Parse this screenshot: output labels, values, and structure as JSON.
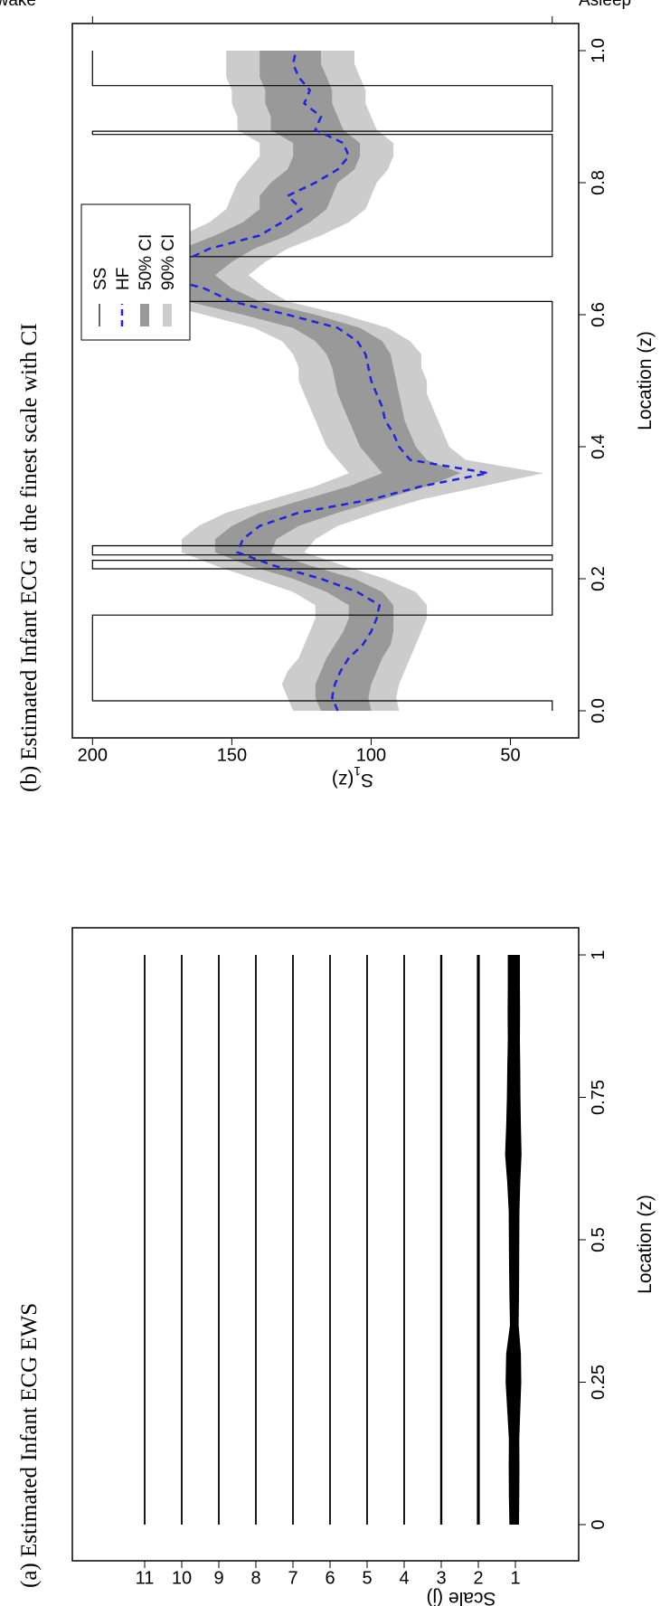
{
  "chart_data": [
    {
      "type": "heatmap",
      "caption": "(a) Estimated Infant ECG EWS",
      "xlabel": "Location (z)",
      "ylabel": "Scale (j)",
      "xticks": [
        "0",
        "0.25",
        "0.5",
        "0.75",
        "1"
      ],
      "xtick_values": [
        0,
        0.25,
        0.5,
        0.75,
        1
      ],
      "yticks": [
        "1",
        "2",
        "3",
        "4",
        "5",
        "6",
        "7",
        "8",
        "9",
        "10",
        "11"
      ],
      "scales": [
        1,
        2,
        3,
        4,
        5,
        6,
        7,
        8,
        9,
        10,
        11
      ],
      "xlim": [
        0,
        1
      ],
      "finest_scale_power_profile": {
        "z": [
          0,
          0.05,
          0.1,
          0.15,
          0.2,
          0.25,
          0.3,
          0.35,
          0.4,
          0.45,
          0.5,
          0.55,
          0.6,
          0.65,
          0.7,
          0.75,
          0.8,
          0.85,
          0.9,
          0.95,
          1.0
        ],
        "relative_power": [
          0.55,
          0.6,
          0.62,
          0.6,
          0.75,
          0.9,
          0.85,
          0.5,
          0.55,
          0.58,
          0.6,
          0.62,
          0.75,
          0.95,
          0.85,
          0.78,
          0.75,
          0.7,
          0.72,
          0.7,
          0.7
        ]
      }
    },
    {
      "type": "line",
      "caption": "(b) Estimated Infant ECG at the finest scale with CI",
      "xlabel": "Location (z)",
      "ylabel": "S",
      "ylabel_sub": "1",
      "ylabel_tail": "(z)",
      "xlim": [
        0,
        1
      ],
      "ylim": [
        32,
        204
      ],
      "xticks": [
        "0.0",
        "0.2",
        "0.4",
        "0.6",
        "0.8",
        "1.0"
      ],
      "xtick_values": [
        0,
        0.2,
        0.4,
        0.6,
        0.8,
        1.0
      ],
      "yticks": [
        "50",
        "100",
        "150",
        "200"
      ],
      "ytick_values": [
        50,
        100,
        150,
        200
      ],
      "state_labels": {
        "high": "Awake",
        "low": "Asleep"
      },
      "state_values": {
        "high": 200,
        "low": 35
      },
      "legend": {
        "position": "top-left",
        "labels": [
          "SS",
          "HF",
          "50% CI",
          "90% CI"
        ]
      },
      "colors": {
        "hf": "#1f24e0",
        "ci50": "#999999",
        "ci90": "#cccccc",
        "ss": "#000000"
      },
      "ss": {
        "z": [
          0,
          0.015,
          0.015,
          0.145,
          0.145,
          0.215,
          0.215,
          0.228,
          0.228,
          0.236,
          0.236,
          0.25,
          0.25,
          0.62,
          0.62,
          0.688,
          0.688,
          0.873,
          0.873,
          0.878,
          0.878,
          0.947,
          0.947,
          1.0
        ],
        "value": [
          35,
          35,
          200,
          200,
          35,
          35,
          200,
          200,
          35,
          35,
          200,
          200,
          35,
          35,
          200,
          200,
          35,
          35,
          200,
          200,
          35,
          35,
          200,
          200
        ]
      },
      "series": [
        {
          "name": "HF",
          "z": [
            0,
            0.02,
            0.04,
            0.06,
            0.08,
            0.1,
            0.12,
            0.14,
            0.16,
            0.18,
            0.2,
            0.22,
            0.24,
            0.26,
            0.28,
            0.3,
            0.32,
            0.34,
            0.36,
            0.38,
            0.4,
            0.42,
            0.44,
            0.46,
            0.48,
            0.5,
            0.52,
            0.54,
            0.56,
            0.58,
            0.6,
            0.62,
            0.64,
            0.66,
            0.68,
            0.7,
            0.72,
            0.74,
            0.76,
            0.78,
            0.8,
            0.82,
            0.84,
            0.86,
            0.88,
            0.9,
            0.92,
            0.94,
            0.96,
            0.98,
            1.0
          ],
          "values": [
            112,
            114,
            113,
            111,
            108,
            103,
            100,
            98,
            97,
            105,
            118,
            135,
            148,
            146,
            140,
            126,
            100,
            82,
            58,
            86,
            90,
            92,
            95,
            96,
            98,
            100,
            101,
            102,
            105,
            112,
            130,
            150,
            160,
            178,
            168,
            158,
            140,
            132,
            125,
            130,
            120,
            112,
            108,
            110,
            120,
            118,
            124,
            122,
            126,
            128,
            127
          ]
        },
        {
          "name": "50% CI",
          "z": [
            0,
            0.02,
            0.04,
            0.06,
            0.08,
            0.1,
            0.12,
            0.14,
            0.16,
            0.18,
            0.2,
            0.22,
            0.24,
            0.26,
            0.28,
            0.3,
            0.32,
            0.34,
            0.36,
            0.38,
            0.4,
            0.42,
            0.44,
            0.46,
            0.48,
            0.5,
            0.52,
            0.54,
            0.56,
            0.58,
            0.6,
            0.62,
            0.64,
            0.66,
            0.68,
            0.7,
            0.72,
            0.74,
            0.76,
            0.78,
            0.8,
            0.82,
            0.84,
            0.86,
            0.88,
            0.9,
            0.92,
            0.94,
            0.96,
            0.98,
            1.0
          ],
          "lower": [
            100,
            101,
            100,
            98,
            96,
            93,
            92,
            92,
            92,
            96,
            106,
            122,
            136,
            134,
            126,
            112,
            96,
            80,
            68,
            80,
            84,
            86,
            88,
            89,
            90,
            91,
            92,
            93,
            96,
            104,
            120,
            140,
            150,
            156,
            150,
            142,
            130,
            122,
            116,
            114,
            112,
            106,
            104,
            104,
            110,
            112,
            114,
            114,
            116,
            118,
            118
          ],
          "upper": [
            118,
            120,
            120,
            118,
            116,
            113,
            110,
            108,
            108,
            116,
            128,
            144,
            156,
            156,
            150,
            140,
            124,
            108,
            96,
            100,
            104,
            106,
            108,
            110,
            112,
            113,
            114,
            116,
            120,
            128,
            146,
            166,
            176,
            184,
            176,
            168,
            156,
            146,
            140,
            140,
            136,
            130,
            128,
            128,
            136,
            136,
            138,
            138,
            140,
            140,
            140
          ]
        },
        {
          "name": "90% CI",
          "z": [
            0,
            0.02,
            0.04,
            0.06,
            0.08,
            0.1,
            0.12,
            0.14,
            0.16,
            0.18,
            0.2,
            0.22,
            0.24,
            0.26,
            0.28,
            0.3,
            0.32,
            0.34,
            0.36,
            0.38,
            0.4,
            0.42,
            0.44,
            0.46,
            0.48,
            0.5,
            0.52,
            0.54,
            0.56,
            0.58,
            0.6,
            0.62,
            0.64,
            0.66,
            0.68,
            0.7,
            0.72,
            0.74,
            0.76,
            0.78,
            0.8,
            0.82,
            0.84,
            0.86,
            0.88,
            0.9,
            0.92,
            0.94,
            0.96,
            0.98,
            1.0
          ],
          "lower": [
            90,
            91,
            90,
            88,
            86,
            84,
            82,
            80,
            80,
            84,
            95,
            110,
            124,
            120,
            112,
            98,
            82,
            60,
            38,
            66,
            72,
            74,
            76,
            78,
            80,
            80,
            82,
            82,
            86,
            94,
            110,
            130,
            138,
            144,
            138,
            130,
            118,
            108,
            102,
            100,
            98,
            94,
            92,
            92,
            98,
            100,
            102,
            102,
            104,
            106,
            106
          ],
          "upper": [
            128,
            130,
            132,
            130,
            126,
            124,
            122,
            120,
            120,
            128,
            142,
            156,
            168,
            168,
            162,
            152,
            136,
            120,
            108,
            112,
            116,
            118,
            120,
            122,
            124,
            126,
            126,
            128,
            132,
            142,
            160,
            178,
            188,
            192,
            188,
            180,
            168,
            158,
            152,
            150,
            148,
            144,
            140,
            140,
            148,
            148,
            150,
            150,
            152,
            152,
            152
          ]
        }
      ]
    }
  ]
}
